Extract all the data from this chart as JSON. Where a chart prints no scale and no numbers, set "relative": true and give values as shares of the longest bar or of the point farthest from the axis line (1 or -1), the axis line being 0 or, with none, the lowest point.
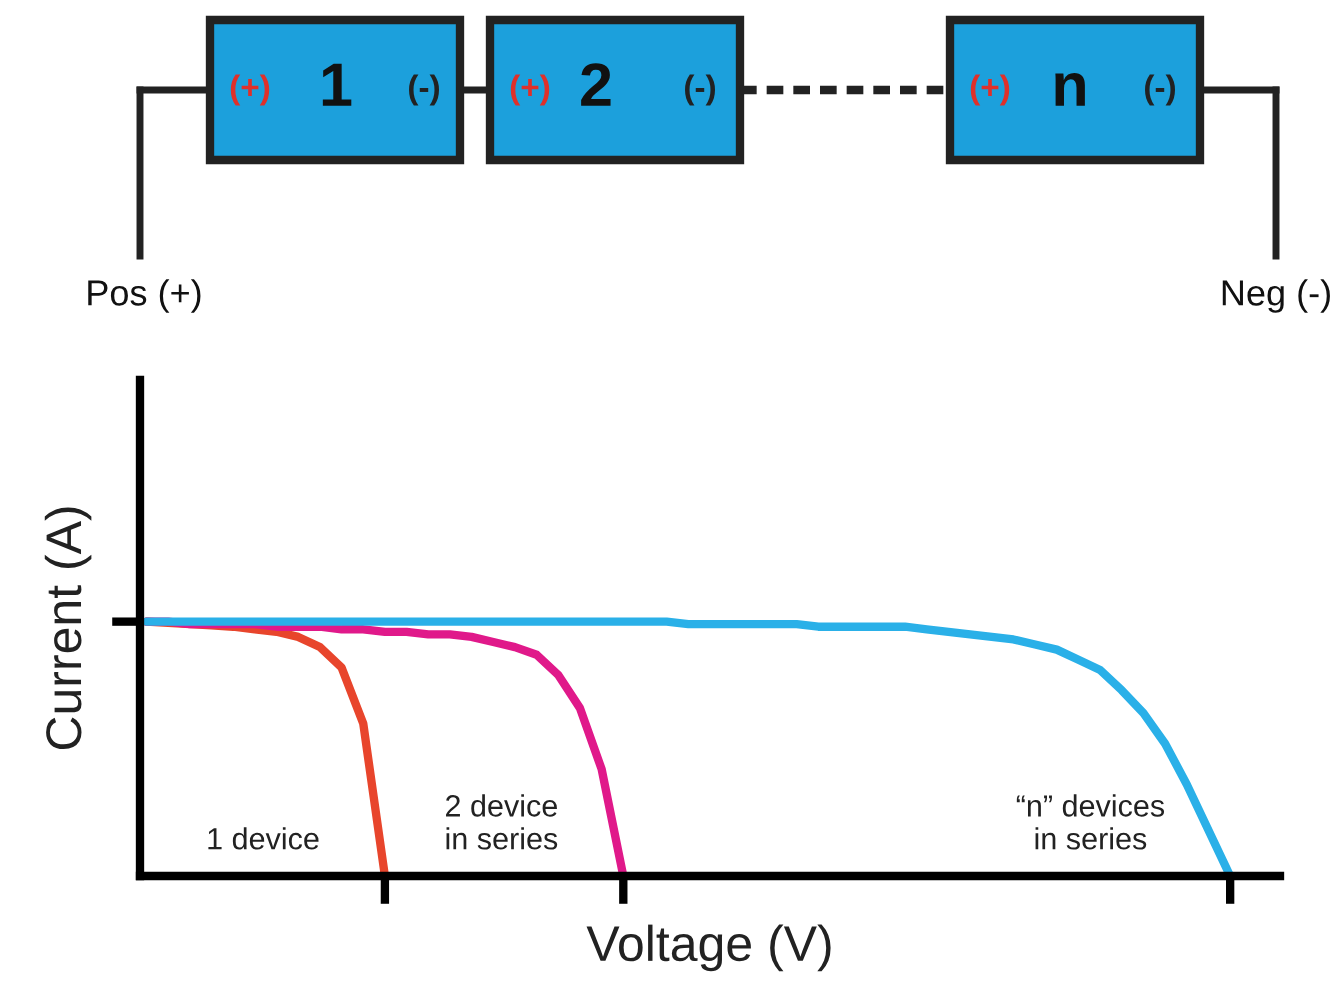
{
  "chart_data": {
    "type": "line",
    "relative": true,
    "xlabel": "Voltage (V)",
    "ylabel": "Current (A)",
    "categories": [
      null,
      null,
      null,
      null,
      null,
      null,
      null,
      null,
      null,
      null,
      null,
      null,
      null,
      null,
      null,
      null,
      null,
      null,
      null,
      null,
      null,
      null,
      null,
      null,
      null,
      null,
      null,
      null,
      null,
      null,
      null,
      null,
      null,
      null,
      null,
      null,
      null,
      null,
      null,
      null,
      null,
      null,
      null,
      null,
      null,
      null,
      null,
      null,
      null,
      null,
      null,
      null,
      null
    ],
    "grid": false,
    "legend": false,
    "marker": "none",
    "line_style": "solid",
    "series": [
      {
        "name": "1 device",
        "color": "#e8452c",
        "values": [
          1.0,
          0.995,
          0.99,
          0.985,
          0.98,
          0.97,
          0.96,
          0.94,
          0.9,
          0.82,
          0.6,
          0,
          null,
          null,
          null,
          null,
          null,
          null,
          null,
          null,
          null,
          null,
          null,
          null,
          null,
          null,
          null,
          null,
          null,
          null,
          null,
          null,
          null,
          null,
          null,
          null,
          null,
          null,
          null,
          null,
          null,
          null,
          null,
          null,
          null,
          null,
          null,
          null,
          null,
          null,
          null,
          null,
          null
        ]
      },
      {
        "name": "2 device\nin series",
        "color": "#e0198a",
        "values": [
          1.0,
          1.0,
          0.99,
          0.99,
          0.99,
          0.99,
          0.98,
          0.98,
          0.98,
          0.97,
          0.97,
          0.96,
          0.96,
          0.95,
          0.95,
          0.94,
          0.92,
          0.9,
          0.87,
          0.79,
          0.66,
          0.42,
          0,
          null,
          null,
          null,
          null,
          null,
          null,
          null,
          null,
          null,
          null,
          null,
          null,
          null,
          null,
          null,
          null,
          null,
          null,
          null,
          null,
          null,
          null,
          null,
          null,
          null,
          null,
          null,
          null,
          null,
          null
        ]
      },
      {
        "name": "“n” devices\nin series",
        "color": "#2ab0e8",
        "values": [
          1.0,
          1.0,
          1.0,
          1.0,
          1.0,
          1.0,
          1.0,
          1.0,
          1.0,
          1.0,
          1.0,
          1.0,
          1.0,
          1.0,
          1.0,
          1.0,
          1.0,
          1.0,
          1.0,
          1.0,
          1.0,
          1.0,
          1.0,
          1.0,
          1.0,
          0.99,
          0.99,
          0.99,
          0.99,
          0.99,
          0.99,
          0.98,
          0.98,
          0.98,
          0.98,
          0.98,
          0.97,
          0.96,
          0.95,
          0.94,
          0.93,
          0.91,
          0.89,
          0.85,
          0.81,
          0.73,
          0.64,
          0.52,
          0.36,
          0.18,
          0,
          null,
          null
        ]
      }
    ],
    "annotations": [
      "(+)",
      "1",
      "(-)",
      "(+)",
      "2",
      "(-)",
      "(+)",
      "n",
      "(-)",
      "Pos (+)",
      "Neg (-)"
    ]
  }
}
